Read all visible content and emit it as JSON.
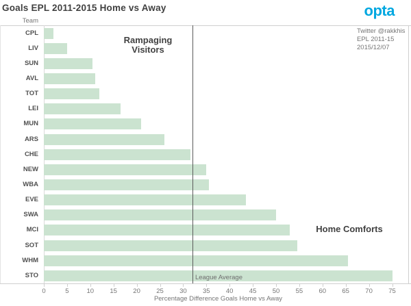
{
  "header": {
    "title": "Goals EPL 2011-2015 Home vs Away",
    "logo_text": "opta",
    "logo_color": "#00a7e0"
  },
  "meta": {
    "lines": [
      "Twitter @rakkhis",
      "EPL 2011-15",
      "2015/12/07"
    ]
  },
  "annotations": {
    "left": "Rampaging\nVisitors",
    "right": "Home Comforts",
    "reference_line_label": "League Average"
  },
  "chart_data": {
    "type": "bar",
    "orientation": "horizontal",
    "title": "Goals EPL 2011-2015 Home vs Away",
    "row_header": "Team",
    "categories": [
      "CPL",
      "LIV",
      "SUN",
      "AVL",
      "TOT",
      "LEI",
      "MUN",
      "ARS",
      "CHE",
      "NEW",
      "WBA",
      "EVE",
      "SWA",
      "MCI",
      "SOT",
      "WHM",
      "STO"
    ],
    "values": [
      2,
      5,
      10.5,
      11,
      12,
      16.5,
      21,
      26,
      31.5,
      35,
      35.5,
      43.5,
      50,
      53,
      54.5,
      65.5,
      75
    ],
    "reference_line_value": 32,
    "xlabel": "Percentage Difference Goals Home vs Away",
    "xlim": [
      0,
      75
    ],
    "xticks": [
      0,
      5,
      10,
      15,
      20,
      25,
      30,
      35,
      40,
      45,
      50,
      55,
      60,
      65,
      70,
      75
    ],
    "grid": false,
    "bar_color": "#cbe3d0",
    "reference_line_color": "#5a5a5a"
  }
}
